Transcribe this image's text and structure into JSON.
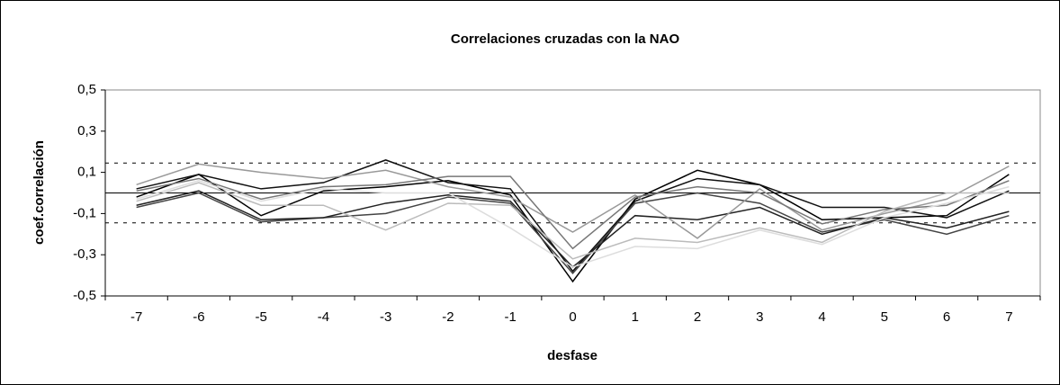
{
  "chart_data": {
    "type": "line",
    "title": "Correlaciones cruzadas con la NAO",
    "x_label": "desfase",
    "y_label": "coef.correlación",
    "categories": [
      "-7",
      "-6",
      "-5",
      "-4",
      "-3",
      "-2",
      "-1",
      "0",
      "1",
      "2",
      "3",
      "4",
      "5",
      "6",
      "7"
    ],
    "series": [
      {
        "color": "#000000",
        "values": [
          -0.02,
          0.09,
          -0.11,
          0.01,
          0.03,
          0.06,
          -0.01,
          -0.43,
          -0.03,
          0.11,
          0.04,
          -0.13,
          -0.12,
          -0.11,
          0.09
        ]
      },
      {
        "color": "#111111",
        "values": [
          0.02,
          0.09,
          0.02,
          0.05,
          0.16,
          0.05,
          0.02,
          -0.38,
          -0.04,
          0.07,
          0.04,
          -0.07,
          -0.07,
          -0.12,
          0.01
        ]
      },
      {
        "color": "#444444",
        "values": [
          -0.07,
          0.0,
          -0.14,
          -0.12,
          -0.1,
          -0.02,
          -0.05,
          -0.39,
          -0.05,
          0.0,
          -0.05,
          -0.19,
          -0.13,
          -0.2,
          -0.11
        ]
      },
      {
        "color": "#222222",
        "values": [
          -0.06,
          0.01,
          -0.13,
          -0.12,
          -0.05,
          -0.01,
          -0.04,
          -0.36,
          -0.11,
          -0.13,
          -0.07,
          -0.2,
          -0.12,
          -0.17,
          -0.09
        ]
      },
      {
        "color": "#999999",
        "values": [
          0.04,
          0.14,
          0.1,
          0.07,
          0.11,
          0.03,
          -0.02,
          -0.19,
          -0.01,
          -0.22,
          0.02,
          -0.18,
          -0.1,
          -0.03,
          0.13
        ]
      },
      {
        "color": "#777777",
        "values": [
          0.01,
          0.07,
          -0.03,
          0.03,
          0.04,
          0.08,
          0.08,
          -0.27,
          -0.02,
          0.03,
          0.0,
          -0.15,
          -0.08,
          -0.06,
          0.06
        ]
      },
      {
        "color": "#bbbbbb",
        "values": [
          -0.04,
          0.05,
          -0.06,
          -0.06,
          -0.18,
          -0.05,
          -0.06,
          -0.32,
          -0.22,
          -0.24,
          -0.17,
          -0.24,
          -0.09,
          0.0,
          0.0
        ]
      },
      {
        "color": "#dddddd",
        "values": [
          -0.03,
          0.06,
          -0.04,
          0.02,
          0.0,
          0.0,
          -0.17,
          -0.36,
          -0.26,
          -0.27,
          -0.18,
          -0.25,
          -0.12,
          -0.05,
          0.03
        ]
      }
    ],
    "ylim": [
      -0.5,
      0.5
    ],
    "yticks": [
      {
        "value": 0.5,
        "label": "0,5"
      },
      {
        "value": 0.3,
        "label": "0,3"
      },
      {
        "value": 0.1,
        "label": "0,1"
      },
      {
        "value": -0.1,
        "label": "-0,1"
      },
      {
        "value": -0.3,
        "label": "-0,3"
      },
      {
        "value": -0.5,
        "label": "-0,5"
      }
    ],
    "reference_lines": [
      {
        "value": 0.145,
        "style": "dashed"
      },
      {
        "value": 0,
        "style": "solid"
      },
      {
        "value": -0.145,
        "style": "dashed"
      }
    ],
    "grid": false
  }
}
